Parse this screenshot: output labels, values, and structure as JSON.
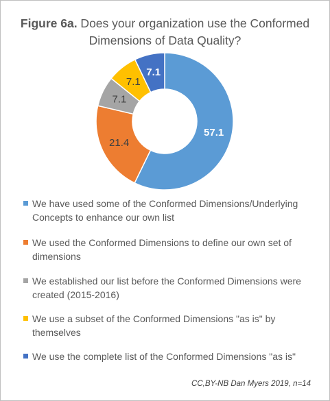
{
  "title": {
    "prefix": "Figure 6a.",
    "text": " Does your organization use the Conformed Dimensions of Data Quality?"
  },
  "credit": "CC,BY-NB Dan Myers 2019, n=14",
  "chart_data": {
    "type": "pie",
    "donut": true,
    "title": "Figure 6a. Does your organization use the Conformed Dimensions of Data Quality?",
    "legend_position": "bottom",
    "slices": [
      {
        "label": "We have used some of the Conformed Dimensions/Underlying Concepts to enhance our own list",
        "value": 57.1,
        "display": "57.1",
        "color": "#5b9bd5",
        "label_color": "#ffffff"
      },
      {
        "label": "We used the Conformed Dimensions to define our own set of dimensions",
        "value": 21.4,
        "display": "21.4",
        "color": "#ed7d31",
        "label_color": "#404040"
      },
      {
        "label": "We established our list before the Conformed Dimensions were created (2015-2016)",
        "value": 7.1,
        "display": "7.1",
        "color": "#a5a5a5",
        "label_color": "#404040"
      },
      {
        "label": "We use a subset of the Conformed Dimensions \"as is\" by themselves",
        "value": 7.1,
        "display": "7.1",
        "color": "#ffc000",
        "label_color": "#404040"
      },
      {
        "label": "We use the complete list of the Conformed Dimensions \"as is\"",
        "value": 7.1,
        "display": "7.1",
        "color": "#4472c4",
        "label_color": "#ffffff"
      }
    ]
  }
}
